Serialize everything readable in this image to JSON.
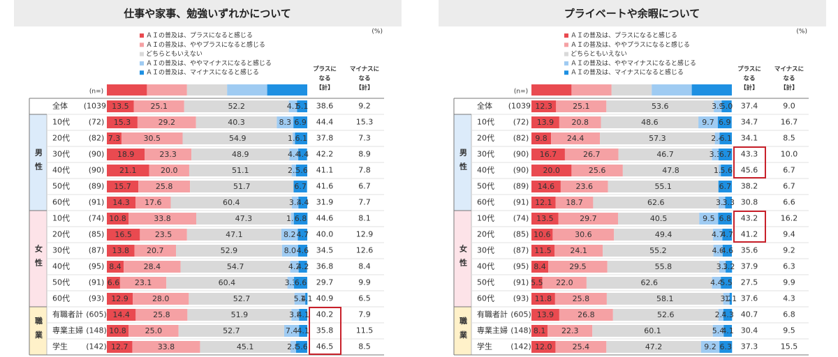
{
  "chart_data": [
    {
      "type": "stacked-bar-table",
      "title": "仕事や家事、勉強いずれかについて",
      "unit": "(%)",
      "n_header": "(n=)",
      "categories": [
        "全体",
        "10代",
        "20代",
        "30代",
        "40代",
        "50代",
        "60代",
        "10代",
        "20代",
        "30代",
        "40代",
        "50代",
        "60代",
        "有職者計",
        "専業主婦",
        "学生"
      ],
      "n_labels": [
        "(1039)",
        "(72)",
        "(82)",
        "(90)",
        "(90)",
        "(89)",
        "(91)",
        "(74)",
        "(85)",
        "(87)",
        "(95)",
        "(91)",
        "(93)",
        "(605)",
        "(148)",
        "(142)"
      ],
      "groups": [
        {
          "label": null,
          "size": 1,
          "color": null
        },
        {
          "label": "男性",
          "size": 6,
          "color": "#dcebfa"
        },
        {
          "label": "女性",
          "size": 6,
          "color": "#fde3e8"
        },
        {
          "label": "職業",
          "size": 3,
          "color": "#fff1c9"
        }
      ],
      "xlim": [
        0,
        100
      ],
      "series": [
        {
          "name": "ＡＩの普及は、プラスになると感じる",
          "color": "#e94a50",
          "values": [
            13.5,
            15.3,
            7.3,
            18.9,
            21.1,
            15.7,
            14.3,
            10.8,
            16.5,
            13.8,
            8.4,
            6.6,
            12.9,
            14.4,
            10.8,
            12.7
          ]
        },
        {
          "name": "ＡＩの普及は、ややプラスになると感じる",
          "color": "#f5a1a4",
          "values": [
            25.1,
            29.2,
            30.5,
            23.3,
            20.0,
            25.8,
            17.6,
            33.8,
            23.5,
            20.7,
            28.4,
            23.1,
            28.0,
            25.8,
            25.0,
            33.8
          ],
          "value_labels": [
            "25.1",
            "29.2",
            "30.5",
            "23.3",
            "20.0",
            "25.8",
            "17.6",
            "33.8",
            "23.5",
            "20.7",
            "28.4",
            "23.1",
            "28.0",
            "25.8",
            "25.0",
            "33.8"
          ]
        },
        {
          "name": "どちらともいえない",
          "color": "#d9d9d9",
          "values": [
            52.2,
            40.3,
            54.9,
            48.9,
            51.1,
            51.7,
            60.4,
            47.3,
            47.1,
            52.9,
            54.7,
            60.4,
            52.7,
            51.9,
            52.7,
            45.1
          ]
        },
        {
          "name": "ＡＩの普及は、ややマイナスになると感じる",
          "color": "#9fcbf2",
          "values": [
            4.1,
            8.3,
            1.2,
            4.4,
            2.2,
            null,
            3.3,
            1.4,
            8.2,
            8.0,
            4.2,
            3.3,
            5.4,
            3.8,
            7.4,
            2.8
          ],
          "value_labels": [
            "4.1",
            "8.3",
            "1.2",
            "4.4",
            "2.2",
            null,
            "3.3",
            "1.4",
            "8.2",
            "8.0",
            "4.2",
            "3.3",
            "5.4",
            "3.8",
            "7.4",
            "2.8"
          ]
        },
        {
          "name": "ＡＩの普及は、マイナスになると感じる",
          "color": "#1e90e2",
          "values": [
            5.1,
            6.9,
            6.1,
            4.4,
            5.6,
            6.7,
            4.4,
            6.8,
            4.7,
            4.6,
            4.2,
            6.6,
            1.1,
            4.1,
            4.1,
            5.6
          ]
        }
      ],
      "plus_total": {
        "label": [
          "プラスに",
          "なる",
          "【計】"
        ],
        "values": [
          38.6,
          44.4,
          37.8,
          42.2,
          41.1,
          41.6,
          31.9,
          44.6,
          40.0,
          34.5,
          36.8,
          29.7,
          40.9,
          40.2,
          35.8,
          46.5
        ],
        "value_labels": [
          "38.6",
          "44.4",
          "37.8",
          "42.2",
          "41.1",
          "41.6",
          "31.9",
          "44.6",
          "40.0",
          "34.5",
          "36.8",
          "29.7",
          "40.9",
          "40.2",
          "35.8",
          "46.5"
        ]
      },
      "minus_total": {
        "label": [
          "マイナスに",
          "なる",
          "【計】"
        ],
        "values": [
          9.2,
          15.3,
          7.3,
          8.9,
          7.8,
          6.7,
          7.7,
          8.1,
          12.9,
          12.6,
          8.4,
          9.9,
          6.5,
          7.9,
          11.5,
          8.5
        ]
      },
      "highlight_rows": [
        [
          13,
          15
        ]
      ],
      "highlight_color": "#c8202a"
    },
    {
      "type": "stacked-bar-table",
      "title": "プライベートや余暇について",
      "unit": "(%)",
      "n_header": "(n=)",
      "categories": [
        "全体",
        "10代",
        "20代",
        "30代",
        "40代",
        "50代",
        "60代",
        "10代",
        "20代",
        "30代",
        "40代",
        "50代",
        "60代",
        "有職者計",
        "専業主婦",
        "学生"
      ],
      "n_labels": [
        "(1039)",
        "(72)",
        "(82)",
        "(90)",
        "(90)",
        "(89)",
        "(91)",
        "(74)",
        "(85)",
        "(87)",
        "(95)",
        "(91)",
        "(93)",
        "(605)",
        "(148)",
        "(142)"
      ],
      "groups": [
        {
          "label": null,
          "size": 1,
          "color": null
        },
        {
          "label": "男性",
          "size": 6,
          "color": "#dcebfa"
        },
        {
          "label": "女性",
          "size": 6,
          "color": "#fde3e8"
        },
        {
          "label": "職業",
          "size": 3,
          "color": "#fff1c9"
        }
      ],
      "xlim": [
        0,
        100
      ],
      "series": [
        {
          "name": "ＡＩの普及は、プラスになると感じる",
          "color": "#e94a50",
          "values": [
            12.3,
            13.9,
            9.8,
            16.7,
            20.0,
            14.6,
            12.1,
            13.5,
            10.6,
            11.5,
            8.4,
            5.5,
            11.8,
            13.9,
            8.1,
            12.0
          ],
          "value_labels": [
            "12.3",
            "13.9",
            "9.8",
            "16.7",
            "20.0",
            "14.6",
            "12.1",
            "13.5",
            "10.6",
            "11.5",
            "8.4",
            "5.5",
            "11.8",
            "13.9",
            "8.1",
            "12.0"
          ]
        },
        {
          "name": "ＡＩの普及は、ややプラスになると感じる",
          "color": "#f5a1a4",
          "values": [
            25.1,
            20.8,
            24.4,
            26.7,
            25.6,
            23.6,
            18.7,
            29.7,
            30.6,
            24.1,
            29.5,
            22.0,
            25.8,
            26.8,
            22.3,
            25.4
          ],
          "value_labels": [
            "25.1",
            "20.8",
            "24.4",
            "26.7",
            "25.6",
            "23.6",
            "18.7",
            "29.7",
            "30.6",
            "24.1",
            "29.5",
            "22.0",
            "25.8",
            "26.8",
            "22.3",
            "25.4"
          ]
        },
        {
          "name": "どちらともいえない",
          "color": "#d9d9d9",
          "values": [
            53.6,
            48.6,
            57.3,
            46.7,
            47.8,
            55.1,
            62.6,
            40.5,
            49.4,
            55.2,
            55.8,
            62.6,
            58.1,
            52.6,
            60.1,
            47.2
          ]
        },
        {
          "name": "ＡＩの普及は、ややマイナスになると感じる",
          "color": "#9fcbf2",
          "values": [
            3.9,
            9.7,
            2.4,
            3.3,
            1.1,
            null,
            3.3,
            9.5,
            4.7,
            4.6,
            3.2,
            4.4,
            3.2,
            2.5,
            5.4,
            9.2
          ]
        },
        {
          "name": "ＡＩの普及は、マイナスになると感じる",
          "color": "#1e90e2",
          "values": [
            5.0,
            6.9,
            6.1,
            6.7,
            5.6,
            6.7,
            3.3,
            6.8,
            4.7,
            4.6,
            3.2,
            5.5,
            1.1,
            4.3,
            4.1,
            6.3
          ],
          "value_labels": [
            "5.0",
            "6.9",
            "6.1",
            "6.7",
            "5.6",
            "6.7",
            "3.3",
            "6.8",
            "4.7",
            "4.6",
            "3.2",
            "5.5",
            "1.1",
            "4.3",
            "4.1",
            "6.3"
          ]
        }
      ],
      "plus_total": {
        "label": [
          "プラスに",
          "なる",
          "【計】"
        ],
        "values": [
          37.4,
          34.7,
          34.1,
          43.3,
          45.6,
          38.2,
          30.8,
          43.2,
          41.2,
          35.6,
          37.9,
          27.5,
          37.6,
          40.7,
          30.4,
          37.3
        ]
      },
      "minus_total": {
        "label": [
          "マイナスに",
          "なる",
          "【計】"
        ],
        "values": [
          9.0,
          16.7,
          8.5,
          10.0,
          6.7,
          6.7,
          6.6,
          16.2,
          9.4,
          9.2,
          6.3,
          9.9,
          4.3,
          6.8,
          9.5,
          15.5
        ],
        "value_labels": [
          "9.0",
          "16.7",
          "8.5",
          "10.0",
          "6.7",
          "6.7",
          "6.6",
          "16.2",
          "9.4",
          "9.2",
          "6.3",
          "9.9",
          "4.3",
          "6.8",
          "9.5",
          "15.5"
        ]
      },
      "highlight_rows": [
        [
          3,
          4
        ],
        [
          7,
          8
        ]
      ],
      "highlight_color": "#c8202a"
    }
  ]
}
